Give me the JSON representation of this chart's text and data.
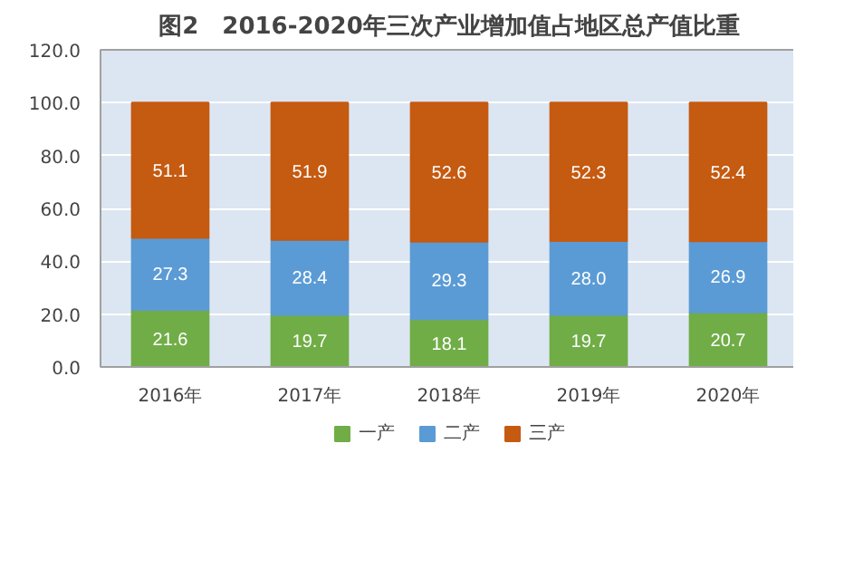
{
  "chart_data": {
    "type": "bar",
    "title": "图2　2016-2020年三次产业增加值占地区总产值比重",
    "categories": [
      "2016年",
      "2017年",
      "2018年",
      "2019年",
      "2020年"
    ],
    "stacked": true,
    "data_labels": true,
    "grid": "y",
    "legend": "bottom",
    "ylim": [
      0,
      120
    ],
    "yticks": [
      {
        "value": 0,
        "label": "0.0"
      },
      {
        "value": 20,
        "label": "20.0"
      },
      {
        "value": 40,
        "label": "40.0"
      },
      {
        "value": 60,
        "label": "60.0"
      },
      {
        "value": 80,
        "label": "80.0"
      },
      {
        "value": 100,
        "label": "100.0"
      },
      {
        "value": 120,
        "label": "120.0"
      }
    ],
    "series": [
      {
        "name": "一产",
        "color": "#70ad47",
        "values": [
          21.6,
          19.7,
          18.1,
          19.7,
          20.7
        ],
        "value_labels": [
          "21.6",
          "19.7",
          "18.1",
          "19.7",
          "20.7"
        ]
      },
      {
        "name": "二产",
        "color": "#5b9bd5",
        "values": [
          27.3,
          28.4,
          29.3,
          28.0,
          26.9
        ],
        "value_labels": [
          "27.3",
          "28.4",
          "29.3",
          "28.0",
          "26.9"
        ]
      },
      {
        "name": "三产",
        "color": "#c55a11",
        "values": [
          51.1,
          51.9,
          52.6,
          52.3,
          52.4
        ],
        "value_labels": [
          "51.1",
          "51.9",
          "52.6",
          "52.3",
          "52.4"
        ]
      }
    ]
  }
}
